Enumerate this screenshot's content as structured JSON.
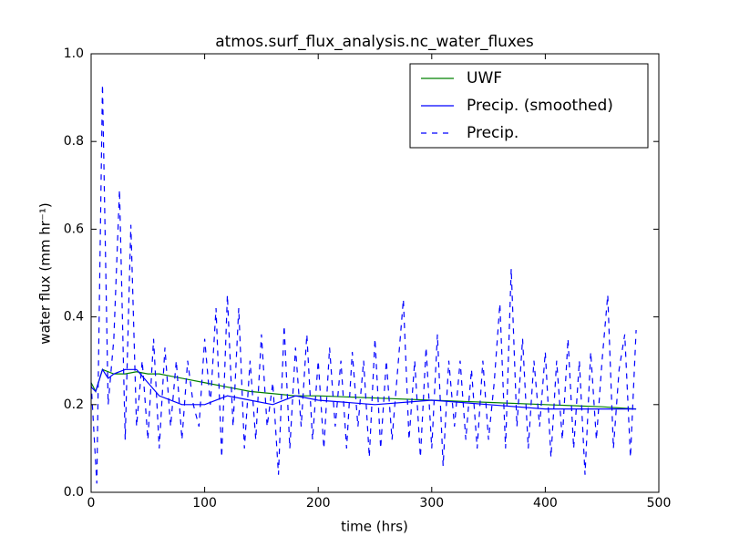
{
  "chart_data": {
    "type": "line",
    "title": "atmos.surf_flux_analysis.nc_water_fluxes",
    "xlabel": "time (hrs)",
    "ylabel": "water flux (mm hr⁻¹)",
    "xlim": [
      0,
      500
    ],
    "xticks": [
      0,
      100,
      200,
      300,
      400,
      500
    ],
    "ylim": [
      0,
      1
    ],
    "yticks": [
      {
        "value": 0,
        "label": "0.0"
      },
      0.2,
      0.4,
      0.6,
      0.8,
      {
        "value": 1,
        "label": "1.0"
      }
    ],
    "legend": "upper right",
    "series": [
      {
        "name": "UWF",
        "color": "#008000",
        "linestyle": "solid",
        "x": [
          0,
          4,
          10,
          20,
          30,
          40,
          50,
          60,
          70,
          80,
          100,
          120,
          140,
          160,
          180,
          200,
          250,
          300,
          350,
          400,
          450,
          480
        ],
        "values": [
          0.25,
          0.23,
          0.28,
          0.27,
          0.27,
          0.275,
          0.27,
          0.27,
          0.265,
          0.26,
          0.25,
          0.24,
          0.23,
          0.225,
          0.22,
          0.22,
          0.215,
          0.21,
          0.205,
          0.2,
          0.195,
          0.19
        ]
      },
      {
        "name": "Precip. (smoothed)",
        "color": "#0000ff",
        "linestyle": "solid",
        "x": [
          0,
          4,
          10,
          15,
          20,
          30,
          40,
          50,
          60,
          70,
          80,
          100,
          120,
          140,
          160,
          180,
          200,
          250,
          300,
          350,
          400,
          450,
          480
        ],
        "values": [
          0.24,
          0.23,
          0.28,
          0.26,
          0.27,
          0.28,
          0.28,
          0.25,
          0.22,
          0.21,
          0.2,
          0.2,
          0.22,
          0.21,
          0.2,
          0.22,
          0.21,
          0.2,
          0.21,
          0.2,
          0.19,
          0.19,
          0.19
        ]
      },
      {
        "name": "Precip.",
        "color": "#0000ff",
        "linestyle": "dashed",
        "x": [
          0,
          5,
          10,
          15,
          20,
          25,
          30,
          35,
          40,
          45,
          50,
          55,
          60,
          65,
          70,
          75,
          80,
          85,
          90,
          95,
          100,
          105,
          110,
          115,
          120,
          125,
          130,
          135,
          140,
          145,
          150,
          155,
          160,
          165,
          170,
          175,
          180,
          185,
          190,
          195,
          200,
          205,
          210,
          215,
          220,
          225,
          230,
          235,
          240,
          245,
          250,
          255,
          260,
          265,
          270,
          275,
          280,
          285,
          290,
          295,
          300,
          305,
          310,
          315,
          320,
          325,
          330,
          335,
          340,
          345,
          350,
          355,
          360,
          365,
          370,
          375,
          380,
          385,
          390,
          395,
          400,
          405,
          410,
          415,
          420,
          425,
          430,
          435,
          440,
          445,
          450,
          455,
          460,
          465,
          470,
          475,
          480
        ],
        "values": [
          0.25,
          0.02,
          0.93,
          0.2,
          0.35,
          0.69,
          0.12,
          0.61,
          0.15,
          0.3,
          0.12,
          0.35,
          0.1,
          0.33,
          0.15,
          0.3,
          0.12,
          0.3,
          0.2,
          0.15,
          0.35,
          0.2,
          0.42,
          0.08,
          0.45,
          0.15,
          0.42,
          0.1,
          0.3,
          0.12,
          0.36,
          0.15,
          0.25,
          0.04,
          0.38,
          0.1,
          0.33,
          0.15,
          0.36,
          0.12,
          0.3,
          0.1,
          0.33,
          0.15,
          0.3,
          0.1,
          0.32,
          0.15,
          0.3,
          0.08,
          0.35,
          0.1,
          0.3,
          0.12,
          0.28,
          0.44,
          0.12,
          0.3,
          0.08,
          0.33,
          0.1,
          0.36,
          0.06,
          0.3,
          0.15,
          0.3,
          0.12,
          0.28,
          0.1,
          0.3,
          0.12,
          0.25,
          0.43,
          0.1,
          0.51,
          0.15,
          0.35,
          0.1,
          0.3,
          0.15,
          0.32,
          0.08,
          0.3,
          0.12,
          0.35,
          0.1,
          0.3,
          0.04,
          0.32,
          0.12,
          0.3,
          0.45,
          0.1,
          0.28,
          0.36,
          0.08,
          0.37
        ]
      }
    ]
  }
}
